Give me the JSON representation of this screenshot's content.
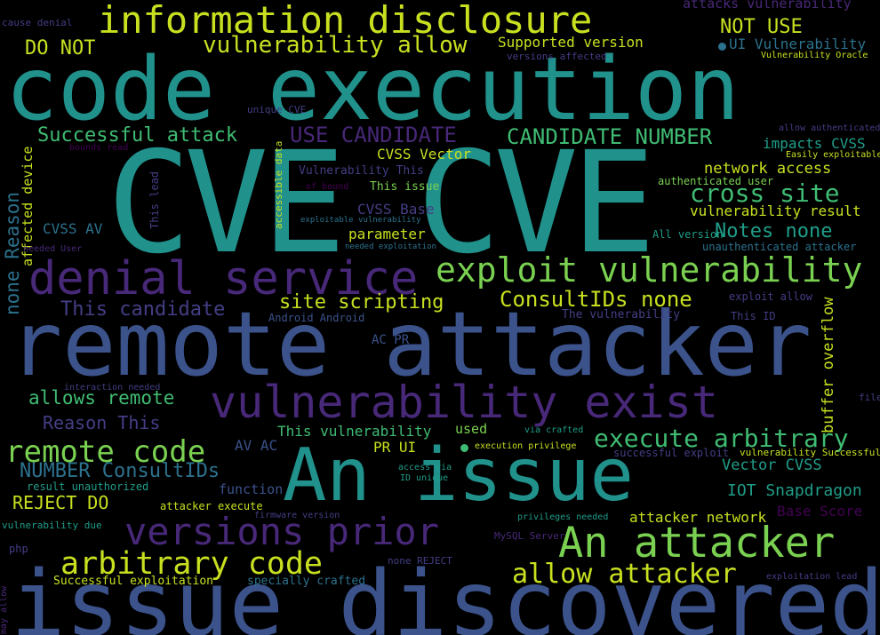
{
  "palette": {
    "yellow": "#c8e020",
    "lime": "#7ad151",
    "green": "#3fbc73",
    "teal": "#21918c",
    "cyan": "#1f9e89",
    "blue": "#3b528b",
    "steel": "#2c728e",
    "purple": "#482878",
    "indigo": "#433e85",
    "violet": "#440154"
  },
  "words": [
    {
      "text": "code execution",
      "color": "teal"
    },
    {
      "text": "CVE CVE",
      "color": "teal"
    },
    {
      "text": "remote attacker",
      "color": "blue"
    },
    {
      "text": "issue discovered",
      "color": "blue"
    },
    {
      "text": "An issue",
      "color": "teal"
    },
    {
      "text": "denial service",
      "color": "purple"
    },
    {
      "text": "information disclosure",
      "color": "yellow"
    },
    {
      "text": "vulnerability exist",
      "color": "purple"
    },
    {
      "text": "exploit vulnerability",
      "color": "lime"
    },
    {
      "text": "An attacker",
      "color": "lime"
    },
    {
      "text": "versions prior",
      "color": "purple"
    },
    {
      "text": "arbitrary code",
      "color": "yellow"
    },
    {
      "text": "execute arbitrary",
      "color": "green"
    },
    {
      "text": "remote code",
      "color": "lime"
    },
    {
      "text": "allow attacker",
      "color": "yellow"
    },
    {
      "text": "vulnerability allow",
      "color": "yellow"
    },
    {
      "text": "cross site",
      "color": "green"
    },
    {
      "text": "ConsultIDs none",
      "color": "yellow"
    },
    {
      "text": "Successful attack",
      "color": "green"
    },
    {
      "text": "CANDIDATE NUMBER",
      "color": "green"
    },
    {
      "text": "USE CANDIDATE",
      "color": "purple"
    },
    {
      "text": "NOT USE",
      "color": "yellow"
    },
    {
      "text": "DO NOT",
      "color": "yellow"
    },
    {
      "text": "Notes none",
      "color": "cyan"
    },
    {
      "text": "site scripting",
      "color": "yellow"
    },
    {
      "text": "This candidate",
      "color": "indigo"
    },
    {
      "text": "allows remote",
      "color": "green"
    },
    {
      "text": "NUMBER ConsultIDs",
      "color": "steel"
    },
    {
      "text": "REJECT DO",
      "color": "yellow"
    },
    {
      "text": "Reason This",
      "color": "indigo"
    },
    {
      "text": "none Reason",
      "color": "steel"
    },
    {
      "text": "buffer overflow",
      "color": "yellow"
    },
    {
      "text": "IOT Snapdragon",
      "color": "cyan"
    },
    {
      "text": "This vulnerability",
      "color": "green"
    },
    {
      "text": "Vector CVSS",
      "color": "cyan"
    },
    {
      "text": "network access",
      "color": "yellow"
    },
    {
      "text": "vulnerability result",
      "color": "yellow"
    },
    {
      "text": "Base Score",
      "color": "violet"
    },
    {
      "text": "attacker network",
      "color": "yellow"
    },
    {
      "text": "CVSS Vector",
      "color": "yellow"
    },
    {
      "text": "impacts CVSS",
      "color": "cyan"
    },
    {
      "text": "UI Vulnerability",
      "color": "steel"
    },
    {
      "text": "attacks vulnerability",
      "color": "purple"
    },
    {
      "text": "Supported version",
      "color": "yellow"
    },
    {
      "text": "CVSS AV",
      "color": "steel"
    },
    {
      "text": "CVSS Base",
      "color": "indigo"
    },
    {
      "text": "parameter",
      "color": "yellow"
    },
    {
      "text": "affected device",
      "color": "yellow"
    },
    {
      "text": "AV AC",
      "color": "blue"
    },
    {
      "text": "PR UI",
      "color": "yellow"
    },
    {
      "text": "function",
      "color": "blue"
    },
    {
      "text": "used",
      "color": "lime"
    },
    {
      "text": "AC PR",
      "color": "blue"
    },
    {
      "text": "This issue",
      "color": "lime"
    },
    {
      "text": "Vulnerability This",
      "color": "indigo"
    },
    {
      "text": "authenticated user",
      "color": "lime"
    },
    {
      "text": "All version",
      "color": "cyan"
    },
    {
      "text": "unauthenticated attacker",
      "color": "steel"
    },
    {
      "text": "exploit allow",
      "color": "indigo"
    },
    {
      "text": "This ID",
      "color": "indigo"
    },
    {
      "text": "The vulnerability",
      "color": "indigo"
    },
    {
      "text": "Android Android",
      "color": "blue"
    },
    {
      "text": "Easily exploitable",
      "color": "yellow"
    },
    {
      "text": "allow authenticated",
      "color": "indigo"
    },
    {
      "text": "Vulnerability Oracle",
      "color": "yellow"
    },
    {
      "text": "versions affected",
      "color": "indigo"
    },
    {
      "text": "unique CVE",
      "color": "indigo"
    },
    {
      "text": "cause denial",
      "color": "indigo"
    },
    {
      "text": "bounds read",
      "color": "violet"
    },
    {
      "text": "of bound",
      "color": "violet"
    },
    {
      "text": "exploitable vulnerability",
      "color": "steel"
    },
    {
      "text": "needed exploitation",
      "color": "steel"
    },
    {
      "text": "needed User",
      "color": "purple"
    },
    {
      "text": "This lead",
      "color": "indigo"
    },
    {
      "text": "accessible data",
      "color": "yellow"
    },
    {
      "text": "successful exploit",
      "color": "indigo"
    },
    {
      "text": "vulnerability Successful",
      "color": "yellow"
    },
    {
      "text": "execution privilege",
      "color": "yellow"
    },
    {
      "text": "via crafted",
      "color": "cyan"
    },
    {
      "text": "access via",
      "color": "cyan"
    },
    {
      "text": "ID unique",
      "color": "cyan"
    },
    {
      "text": "interaction needed",
      "color": "indigo"
    },
    {
      "text": "result unauthorized",
      "color": "cyan"
    },
    {
      "text": "attacker execute",
      "color": "yellow"
    },
    {
      "text": "firmware version",
      "color": "indigo"
    },
    {
      "text": "vulnerability due",
      "color": "cyan"
    },
    {
      "text": "privileges needed",
      "color": "cyan"
    },
    {
      "text": "MySQL Server",
      "color": "purple"
    },
    {
      "text": "php",
      "color": "indigo"
    },
    {
      "text": "none REJECT",
      "color": "indigo"
    },
    {
      "text": "Successful exploitation",
      "color": "yellow"
    },
    {
      "text": "specially crafted",
      "color": "steel"
    },
    {
      "text": "exploitation lead",
      "color": "indigo"
    },
    {
      "text": "may allow",
      "color": "purple"
    },
    {
      "text": "file",
      "color": "indigo"
    }
  ]
}
